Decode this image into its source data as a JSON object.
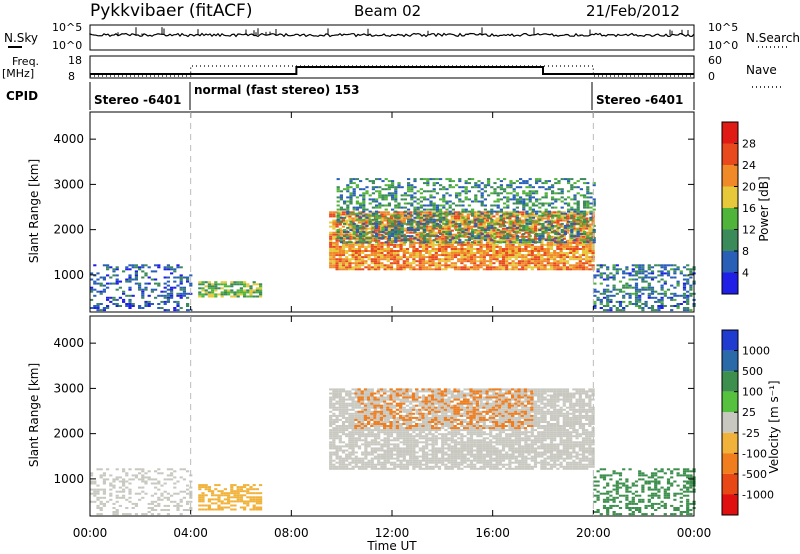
{
  "header": {
    "station": "Pykkvibaer (fitACF)",
    "beam": "Beam 02",
    "date": "21/Feb/2012"
  },
  "strip_labels": {
    "nsky": "N.Sky",
    "nsearch": "N.Search",
    "freq": "Freq.",
    "mhz": "[MHz]",
    "nave": "Nave",
    "cpid": "CPID"
  },
  "strip_ticks": {
    "nsky_top": "10^5",
    "nsky_bottom": "10^0",
    "freq_top": "18",
    "freq_bottom": "8",
    "nave_top": "60",
    "nave_bottom": "0"
  },
  "cpid_labels": {
    "seg1": "Stereo -6401",
    "seg2": "normal (fast stereo) 153",
    "seg3": "Stereo -6401"
  },
  "axis": {
    "ylabel": "Slant Range [km]",
    "xlabel": "Time UT"
  },
  "colorbars": {
    "power_label": "Power [dB]",
    "velocity_label": "Velocity [m s⁻¹]"
  },
  "chart_data": [
    {
      "type": "heatmap",
      "panel": "power",
      "xlabel": "Time UT",
      "ylabel": "Slant Range [km]",
      "x_ticks": [
        "00:00",
        "04:00",
        "08:00",
        "12:00",
        "16:00",
        "20:00",
        "00:00"
      ],
      "x_range_hours": [
        0,
        24
      ],
      "y_ticks": [
        1000,
        2000,
        3000,
        4000
      ],
      "ylim": [
        180,
        4600
      ],
      "colorbar": {
        "label": "Power [dB]",
        "ticks": [
          4,
          8,
          12,
          16,
          20,
          24,
          28
        ],
        "colors": [
          "#1f1fe6",
          "#2a5fb8",
          "#3b8a5a",
          "#50b43a",
          "#e6c83a",
          "#f08a28",
          "#e84a1e",
          "#e01a14"
        ]
      },
      "regions": [
        {
          "t0": 0.0,
          "t1": 4.0,
          "r0": 200,
          "r1": 1200,
          "value": 6,
          "density": 0.35
        },
        {
          "t0": 4.3,
          "t1": 6.8,
          "r0": 500,
          "r1": 850,
          "value": 14,
          "density": 0.7
        },
        {
          "t0": 9.5,
          "t1": 20.0,
          "r0": 1100,
          "r1": 2400,
          "value": 22,
          "density": 0.85
        },
        {
          "t0": 9.8,
          "t1": 20.0,
          "r0": 1700,
          "r1": 3100,
          "value": 10,
          "density": 0.45
        },
        {
          "t0": 20.0,
          "t1": 24.0,
          "r0": 200,
          "r1": 1200,
          "value": 8,
          "density": 0.45
        }
      ]
    },
    {
      "type": "heatmap",
      "panel": "velocity",
      "xlabel": "Time UT",
      "ylabel": "Slant Range [km]",
      "x_ticks": [
        "00:00",
        "04:00",
        "08:00",
        "12:00",
        "16:00",
        "20:00",
        "00:00"
      ],
      "x_range_hours": [
        0,
        24
      ],
      "y_ticks": [
        1000,
        2000,
        3000,
        4000
      ],
      "ylim": [
        180,
        4600
      ],
      "colorbar": {
        "label": "Velocity [m s⁻¹]",
        "ticks": [
          1000,
          500,
          100,
          25,
          -25,
          -100,
          -500,
          -1000
        ],
        "colors": [
          "#1f3bd0",
          "#2b6aa8",
          "#3d8f4d",
          "#55c13e",
          "#c8c8c0",
          "#f0b23a",
          "#f07e1e",
          "#e84816",
          "#e01010"
        ]
      },
      "regions": [
        {
          "t0": 0.0,
          "t1": 4.0,
          "r0": 200,
          "r1": 1200,
          "value": 0,
          "density": 0.3
        },
        {
          "t0": 4.3,
          "t1": 6.8,
          "r0": 300,
          "r1": 850,
          "value": -80,
          "density": 0.6
        },
        {
          "t0": 9.5,
          "t1": 20.0,
          "r0": 1200,
          "r1": 3000,
          "value": 0,
          "density": 0.8
        },
        {
          "t0": 10.5,
          "t1": 17.5,
          "r0": 2100,
          "r1": 3000,
          "value": -400,
          "density": 0.35
        },
        {
          "t0": 20.0,
          "t1": 24.0,
          "r0": 200,
          "r1": 1200,
          "value": 200,
          "density": 0.4
        }
      ]
    }
  ]
}
